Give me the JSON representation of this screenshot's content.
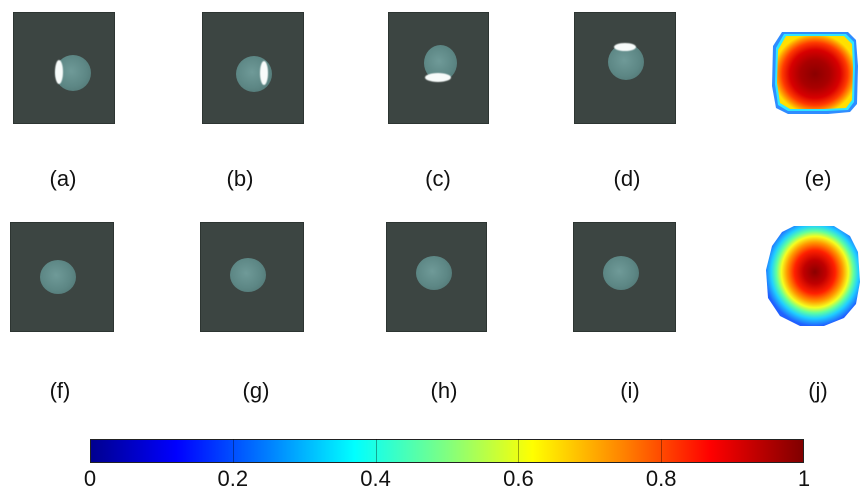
{
  "captions": {
    "a": "(a)",
    "b": "(b)",
    "c": "(c)",
    "d": "(d)",
    "e": "(e)",
    "f": "(f)",
    "g": "(g)",
    "h": "(h)",
    "i": "(i)",
    "j": "(j)"
  },
  "colorbar": {
    "ticks": [
      "0",
      "0.2",
      "0.4",
      "0.6",
      "0.8",
      "1"
    ],
    "min": 0,
    "max": 1,
    "colormap": "jet"
  },
  "colors": {
    "photo_background": "#3c4542",
    "sphere": "#5d8785",
    "highlight": "#f7fbfa"
  }
}
